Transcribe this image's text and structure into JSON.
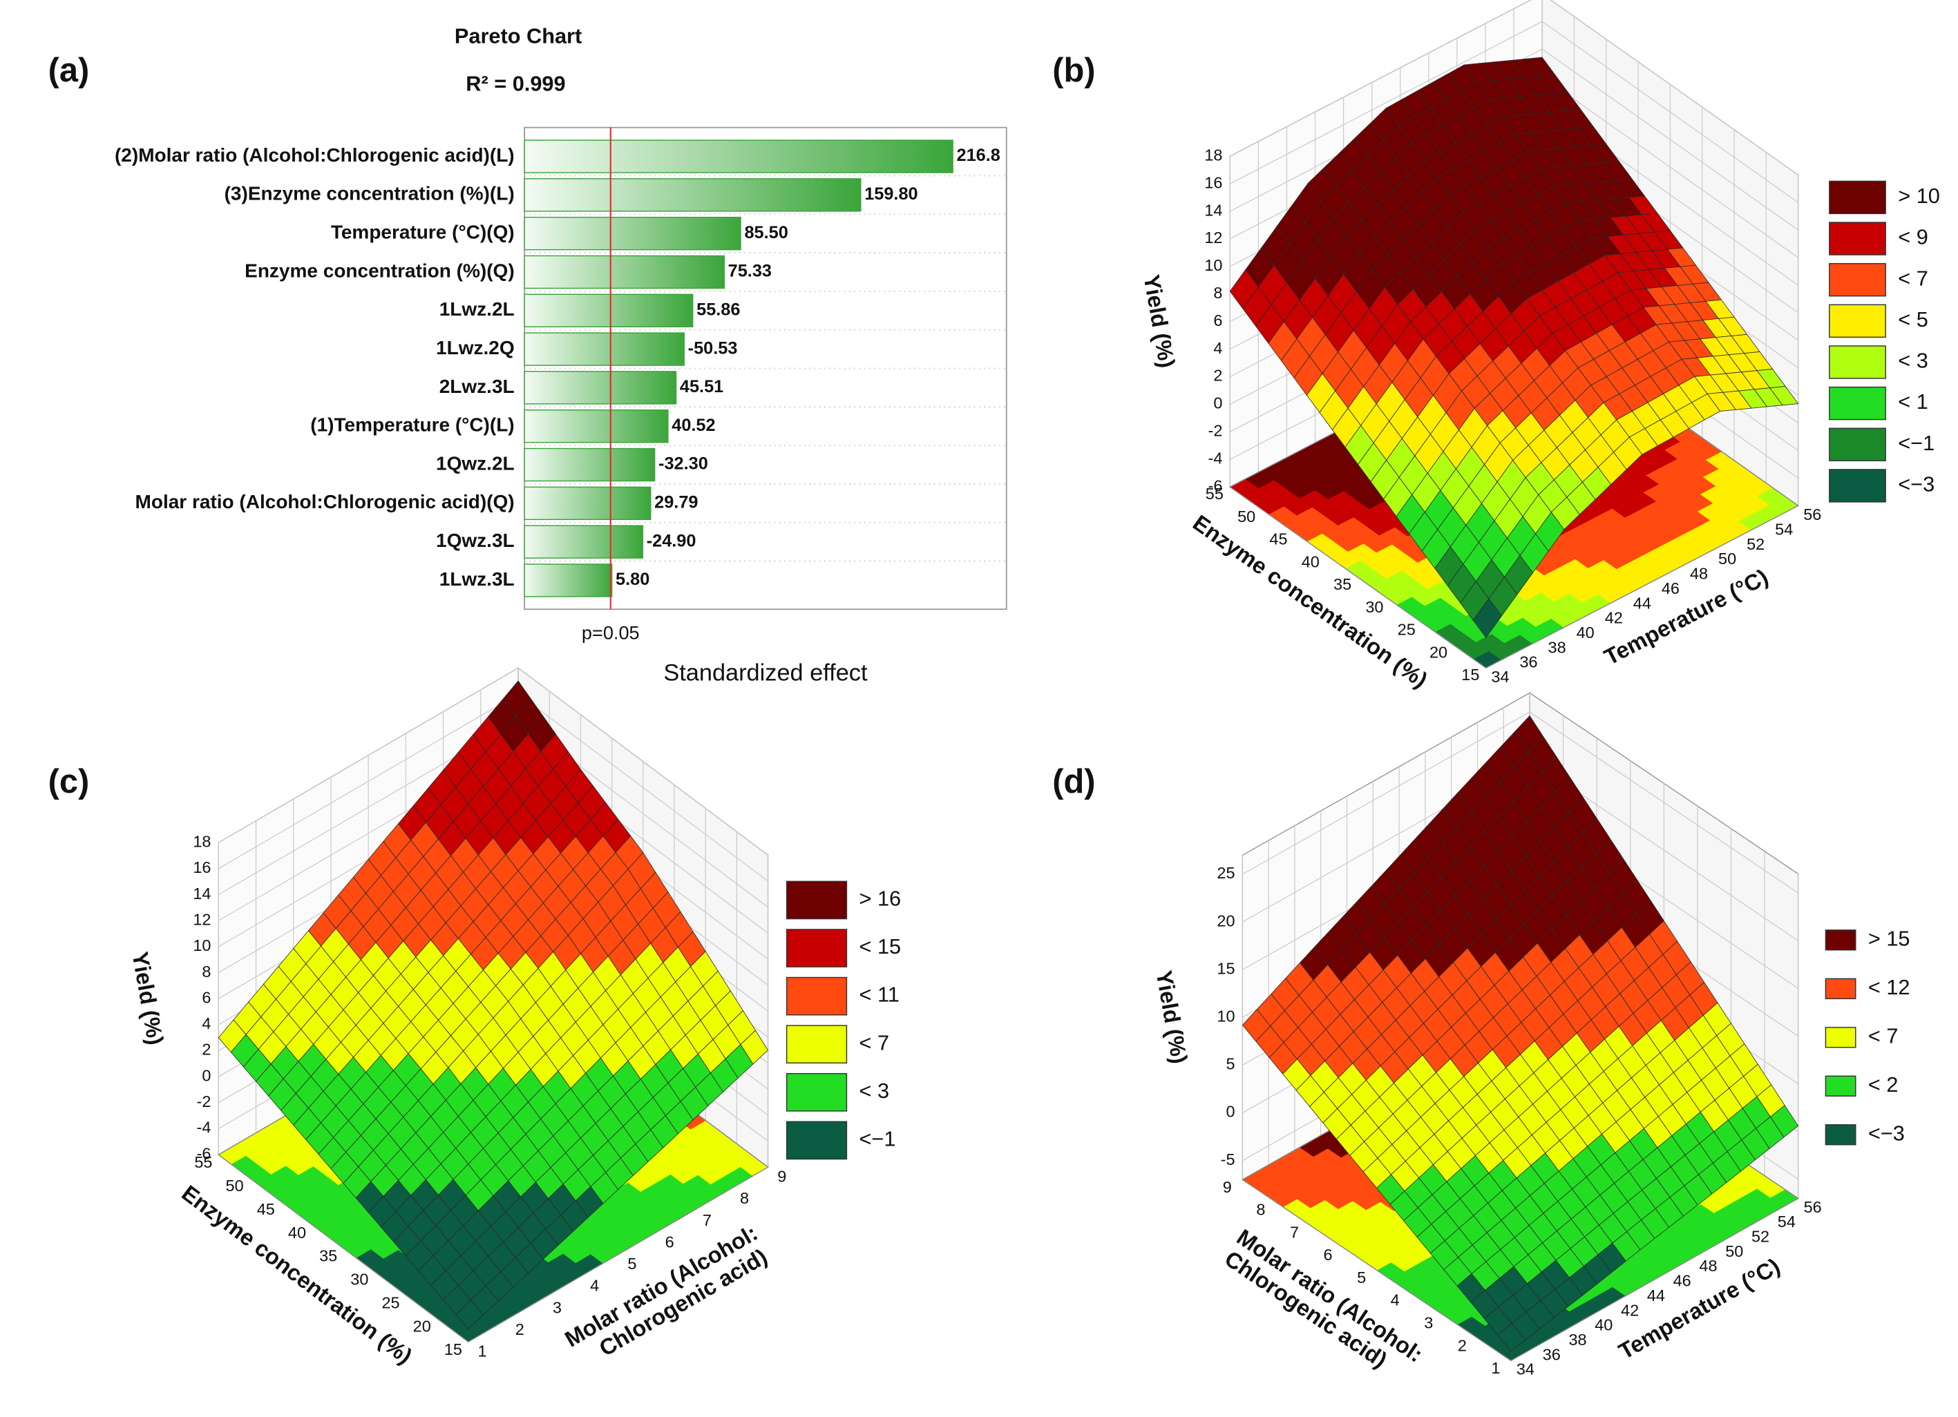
{
  "chart_data": [
    {
      "type": "bar",
      "orientation": "horizontal",
      "panel_label": "(a)",
      "title": "Pareto Chart",
      "subtitle": "R² = 0.999",
      "xlabel": "Standardized effect",
      "categories": [
        "(2)Molar ratio (Alcohol:Chlorogenic acid)(L)",
        "(3)Enzyme concentration (%)(L)",
        "Temperature (°C)(Q)",
        "Enzyme concentration (%)(Q)",
        "1Lwz.2L",
        "1Lwz.2Q",
        "2Lwz.3L",
        "(1)Temperature (°C)(L)",
        "1Qwz.2L",
        "Molar ratio (Alcohol:Chlorogenic acid)(Q)",
        "1Qwz.3L",
        "1Lwz.3L"
      ],
      "values": [
        216.8,
        159.8,
        85.5,
        75.33,
        55.86,
        -50.53,
        45.51,
        40.52,
        -32.3,
        29.79,
        -24.9,
        5.8
      ],
      "value_labels": [
        "216.8",
        "159.80",
        "85.50",
        "75.33",
        "55.86",
        "-50.53",
        "45.51",
        "40.52",
        "-32.30",
        "29.79",
        "-24.90",
        "5.80"
      ],
      "xlim": [
        -48.3,
        250
      ],
      "threshold": {
        "value": 5,
        "label": "p=0.05",
        "color": "#e03030"
      },
      "color": "#3aa53a"
    },
    {
      "type": "surface",
      "panel_label": "(b)",
      "xlabel": "Temperature (°C)",
      "ylabel": "Enzyme concentration (%)",
      "zlabel": "Yield (%)",
      "x": [
        34,
        39.5,
        45,
        50.5,
        56
      ],
      "y": [
        15,
        25,
        35,
        45,
        55
      ],
      "z": [
        [
          -3.8,
          1.1,
          3.6,
          3.8,
          1.4
        ],
        [
          -0.8,
          4.1,
          6.6,
          6.8,
          4.4
        ],
        [
          2.2,
          7.1,
          9.6,
          9.8,
          7.4
        ],
        [
          5.2,
          10.1,
          12.6,
          12.8,
          10.4
        ],
        [
          8.2,
          13.1,
          15.6,
          15.8,
          13.4
        ]
      ],
      "xlim": [
        34,
        56
      ],
      "ylim": [
        15,
        55
      ],
      "zlim": [
        -6,
        18
      ],
      "xticks": [
        34,
        36,
        38,
        40,
        42,
        44,
        46,
        48,
        50,
        52,
        54,
        56
      ],
      "yticks": [
        15,
        20,
        25,
        30,
        35,
        40,
        45,
        50,
        55
      ],
      "zticks": [
        -6,
        -4,
        -2,
        0,
        2,
        4,
        6,
        8,
        10,
        12,
        14,
        16,
        18
      ],
      "legend": [
        {
          "value": 10,
          "label": "> 10",
          "color": "#6e0000"
        },
        {
          "value": 9,
          "label": "< 9",
          "color": "#c80000"
        },
        {
          "value": 7,
          "label": "< 7",
          "color": "#ff4a10"
        },
        {
          "value": 5,
          "label": "< 5",
          "color": "#ffee00"
        },
        {
          "value": 3,
          "label": "< 3",
          "color": "#b0ff10"
        },
        {
          "value": 1,
          "label": "< 1",
          "color": "#22dd22"
        },
        {
          "value": -1,
          "label": "<−1",
          "color": "#1a8a2a"
        },
        {
          "value": -3,
          "label": "<−3",
          "color": "#0a5c42"
        }
      ]
    },
    {
      "type": "surface",
      "panel_label": "(c)",
      "xlabel": [
        "Molar ratio (Alcohol:",
        "Chlorogenic acid)"
      ],
      "ylabel": "Enzyme concentration (%)",
      "zlabel": "Yield (%)",
      "x": [
        1,
        3,
        5,
        7,
        9
      ],
      "y": [
        15,
        25,
        35,
        45,
        55
      ],
      "z": [
        [
          -5,
          -3,
          -1,
          1,
          3
        ],
        [
          -3,
          -0.5,
          2,
          4.5,
          7
        ],
        [
          -1,
          2,
          5,
          8,
          11
        ],
        [
          1,
          4.2,
          7.4,
          10.6,
          13.8
        ],
        [
          3,
          6.5,
          10,
          13.5,
          17
        ]
      ],
      "xlim": [
        1,
        9
      ],
      "ylim": [
        15,
        55
      ],
      "zlim": [
        -6,
        18
      ],
      "xticks": [
        1,
        2,
        3,
        4,
        5,
        6,
        7,
        8,
        9
      ],
      "yticks": [
        15,
        20,
        25,
        30,
        35,
        40,
        45,
        50,
        55
      ],
      "zticks": [
        -6,
        -4,
        -2,
        0,
        2,
        4,
        6,
        8,
        10,
        12,
        14,
        16,
        18
      ],
      "legend": [
        {
          "value": 16,
          "label": "> 16",
          "color": "#6e0000"
        },
        {
          "value": 15,
          "label": "< 15",
          "color": "#c80000"
        },
        {
          "value": 11,
          "label": "< 11",
          "color": "#ff4a10"
        },
        {
          "value": 7,
          "label": "< 7",
          "color": "#eeff00"
        },
        {
          "value": 3,
          "label": "< 3",
          "color": "#22dd22"
        },
        {
          "value": -1,
          "label": "<−1",
          "color": "#0a5c42"
        }
      ]
    },
    {
      "type": "surface",
      "panel_label": "(d)",
      "xlabel": "Temperature (°C)",
      "ylabel": [
        "Molar ratio (Alcohol:",
        "Chlorogenic acid)"
      ],
      "zlabel": "Yield (%)",
      "x": [
        34,
        39.5,
        45,
        50.5,
        56
      ],
      "y": [
        1,
        3,
        5,
        7,
        9
      ],
      "z": [
        [
          -6,
          -4.4,
          -2.7,
          -1.1,
          0.6
        ],
        [
          -2.2,
          0,
          2.2,
          4.4,
          6.6
        ],
        [
          1.6,
          4.4,
          7.1,
          9.9,
          12.6
        ],
        [
          5.4,
          8.7,
          12,
          15.3,
          18.6
        ],
        [
          9.2,
          13.1,
          16.9,
          20.8,
          24.6
        ]
      ],
      "xlim": [
        34,
        56
      ],
      "ylim": [
        1,
        9
      ],
      "zlim": [
        -7,
        27
      ],
      "xticks": [
        34,
        36,
        38,
        40,
        42,
        44,
        46,
        48,
        50,
        52,
        54,
        56
      ],
      "yticks": [
        1,
        2,
        3,
        4,
        5,
        6,
        7,
        8,
        9
      ],
      "zticks": [
        -5,
        0,
        5,
        10,
        15,
        20,
        25
      ],
      "legend": [
        {
          "value": 15,
          "label": "> 15",
          "color": "#6e0000"
        },
        {
          "value": 12,
          "label": "< 12",
          "color": "#ff4a10"
        },
        {
          "value": 7,
          "label": "< 7",
          "color": "#eeff00"
        },
        {
          "value": 2,
          "label": "< 2",
          "color": "#22dd22"
        },
        {
          "value": -3,
          "label": "<−3",
          "color": "#0a5c42"
        }
      ]
    }
  ]
}
